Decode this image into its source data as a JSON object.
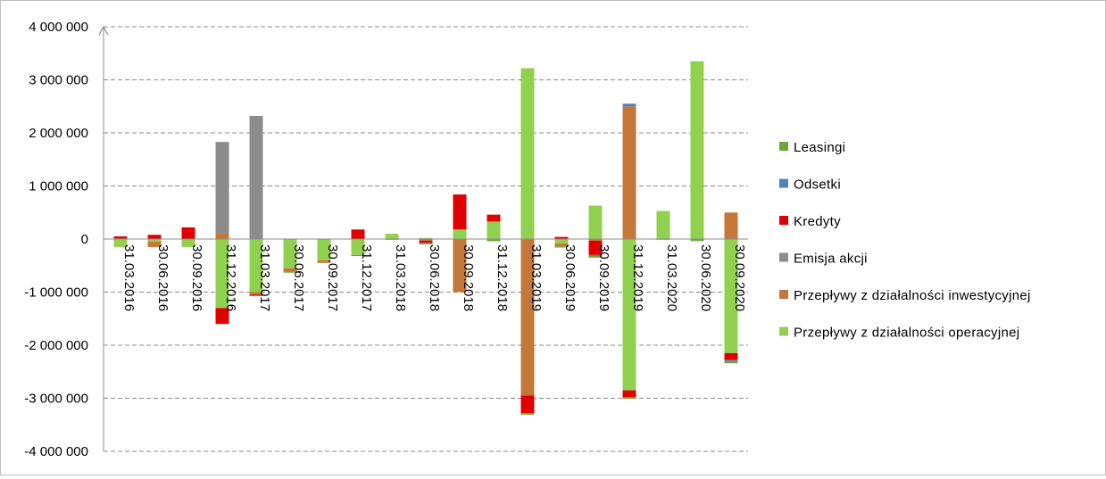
{
  "chart_data": {
    "type": "bar",
    "stacked": true,
    "categories": [
      "31.03.2016",
      "30.06.2016",
      "30.09.2016",
      "31.12.2016",
      "31.03.2017",
      "30.06.2017",
      "30.09.2017",
      "31.12.2017",
      "31.03.2018",
      "30.06.2018",
      "30.09.2018",
      "31.12.2018",
      "31.03.2019",
      "30.06.2019",
      "30.09.2019",
      "31.12.2019",
      "31.03.2020",
      "30.06.2020",
      "30.09.2020"
    ],
    "ylim": [
      -4000000,
      4000000
    ],
    "ytick_values": [
      -4000000,
      -3000000,
      -2000000,
      -1000000,
      0,
      1000000,
      2000000,
      3000000,
      4000000
    ],
    "ytick_labels": [
      "-4 000 000",
      "-3 000 000",
      "-2 000 000",
      "-1 000 000",
      "0",
      "1 000 000",
      "2 000 000",
      "3 000 000",
      "4 000 000"
    ],
    "grid": "horizontal dashed",
    "legend_position": "right",
    "series": [
      {
        "name": "Przepływy z działalności operacyjnej",
        "color": "#92d050",
        "values": [
          -150000,
          -50000,
          -150000,
          -1300000,
          -1000000,
          -550000,
          -400000,
          -300000,
          100000,
          20000,
          180000,
          330000,
          3220000,
          -80000,
          630000,
          -2850000,
          530000,
          3350000,
          -2150000
        ]
      },
      {
        "name": "Przepływy z działalności inwestycyjnej",
        "color": "#c5773a",
        "values": [
          10000,
          -100000,
          0,
          110000,
          -50000,
          -70000,
          -50000,
          -20000,
          -10000,
          -30000,
          -1000000,
          -10000,
          -2950000,
          -60000,
          -30000,
          2500000,
          -10000,
          -20000,
          500000
        ]
      },
      {
        "name": "Emisja akcji",
        "color": "#8c8c8c",
        "values": [
          0,
          0,
          0,
          1720000,
          2320000,
          0,
          0,
          0,
          0,
          0,
          0,
          0,
          0,
          0,
          0,
          0,
          0,
          0,
          0
        ]
      },
      {
        "name": "Kredyty",
        "color": "#e00000",
        "values": [
          40000,
          80000,
          220000,
          -300000,
          -20000,
          0,
          0,
          180000,
          0,
          -40000,
          660000,
          130000,
          -330000,
          40000,
          -270000,
          -130000,
          0,
          0,
          -130000
        ]
      },
      {
        "name": "Odsetki",
        "color": "#4f81bd",
        "values": [
          0,
          0,
          0,
          0,
          0,
          0,
          0,
          0,
          0,
          -10000,
          0,
          0,
          0,
          0,
          -20000,
          50000,
          0,
          0,
          -20000
        ]
      },
      {
        "name": "Leasingi",
        "color": "#70a33a",
        "values": [
          0,
          0,
          0,
          0,
          0,
          -10000,
          0,
          0,
          0,
          -20000,
          0,
          -30000,
          -30000,
          -20000,
          -30000,
          -30000,
          0,
          -20000,
          -40000
        ]
      }
    ],
    "legend_order": [
      "Leasingi",
      "Odsetki",
      "Kredyty",
      "Emisja akcji",
      "Przepływy z działalności inwestycyjnej",
      "Przepływy z działalności operacyjnej"
    ]
  }
}
